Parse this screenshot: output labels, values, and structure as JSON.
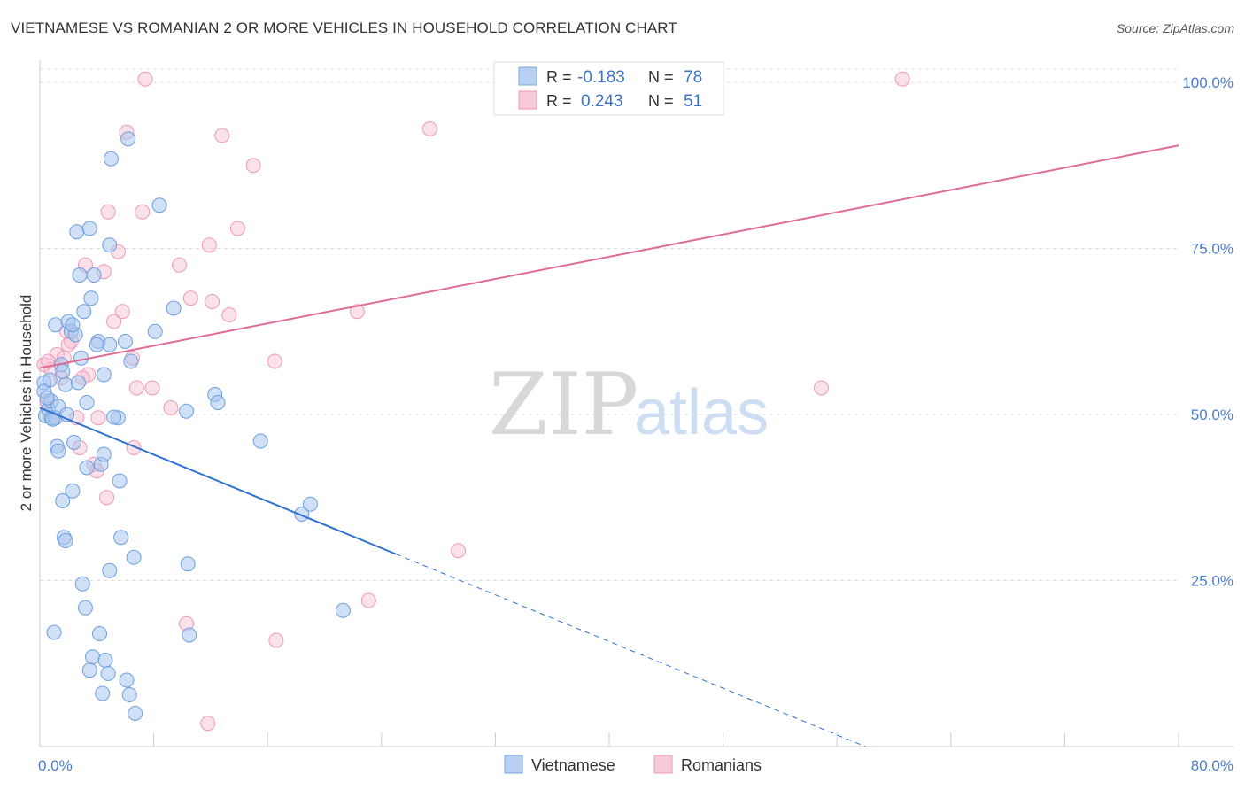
{
  "title": "VIETNAMESE VS ROMANIAN 2 OR MORE VEHICLES IN HOUSEHOLD CORRELATION CHART",
  "source": "Source: ZipAtlas.com",
  "watermark": {
    "zip": "ZIP",
    "atlas": "atlas"
  },
  "colors": {
    "blue_fill": "#a9c6ef",
    "blue_stroke": "#6f9fe0",
    "blue_line": "#2f72d0",
    "pink_fill": "#f6bfd0",
    "pink_stroke": "#ee9ab5",
    "pink_line": "#e06b96",
    "grid": "#dddddd",
    "axis_text": "#4a7cc9"
  },
  "legend": {
    "rows": [
      {
        "r_label": "R =",
        "r_value": "-0.183",
        "n_label": "N =",
        "n_value": "78",
        "series": "Vietnamese"
      },
      {
        "r_label": "R =",
        "r_value": "0.243",
        "n_label": "N =",
        "n_value": "51",
        "series": "Romanians"
      }
    ]
  },
  "bottom_legend": [
    "Vietnamese",
    "Romanians"
  ],
  "chart_data": {
    "type": "scatter",
    "title": "VIETNAMESE VS ROMANIAN 2 OR MORE VEHICLES IN HOUSEHOLD CORRELATION CHART",
    "xlabel": "",
    "ylabel": "2 or more Vehicles in Household",
    "xlim": [
      0,
      80
    ],
    "ylim": [
      0,
      102
    ],
    "x_tick_labels": [
      "0.0%",
      "80.0%"
    ],
    "y_ticks": [
      25,
      50,
      75,
      100
    ],
    "y_tick_labels": [
      "25.0%",
      "50.0%",
      "75.0%",
      "100.0%"
    ],
    "grid": true,
    "series": [
      {
        "name": "Vietnamese",
        "r": -0.183,
        "n": 78,
        "trend": {
          "x_start": 0,
          "y_start": 51.0,
          "x_solid_end": 25,
          "y_solid_end": 29.0,
          "x_dash_end": 58,
          "y_dash_end": 0
        },
        "points": [
          [
            0.3,
            54.8
          ],
          [
            0.3,
            53.5
          ],
          [
            0.4,
            49.8
          ],
          [
            0.6,
            50.8
          ],
          [
            0.7,
            55.2
          ],
          [
            0.8,
            52.0
          ],
          [
            0.8,
            49.5
          ],
          [
            1.0,
            17.2
          ],
          [
            1.1,
            63.5
          ],
          [
            1.1,
            49.5
          ],
          [
            1.2,
            45.2
          ],
          [
            1.3,
            44.5
          ],
          [
            1.3,
            51.2
          ],
          [
            1.5,
            57.5
          ],
          [
            1.6,
            37.0
          ],
          [
            1.7,
            31.5
          ],
          [
            1.8,
            31.0
          ],
          [
            1.8,
            54.5
          ],
          [
            2.0,
            64.0
          ],
          [
            2.2,
            62.5
          ],
          [
            2.3,
            38.5
          ],
          [
            2.4,
            45.8
          ],
          [
            2.5,
            62.0
          ],
          [
            2.6,
            77.5
          ],
          [
            2.7,
            54.8
          ],
          [
            2.8,
            71.0
          ],
          [
            2.9,
            58.5
          ],
          [
            3.0,
            24.5
          ],
          [
            3.1,
            65.5
          ],
          [
            3.2,
            20.9
          ],
          [
            3.3,
            51.8
          ],
          [
            3.3,
            42.0
          ],
          [
            3.5,
            11.5
          ],
          [
            3.5,
            78.0
          ],
          [
            3.6,
            67.5
          ],
          [
            3.7,
            13.5
          ],
          [
            3.8,
            71.0
          ],
          [
            4.1,
            61.0
          ],
          [
            4.2,
            17.0
          ],
          [
            4.3,
            42.5
          ],
          [
            4.4,
            8.0
          ],
          [
            4.5,
            56.0
          ],
          [
            4.5,
            44.0
          ],
          [
            4.6,
            13.0
          ],
          [
            4.8,
            11.0
          ],
          [
            4.9,
            60.5
          ],
          [
            4.9,
            75.5
          ],
          [
            4.9,
            26.5
          ],
          [
            5.0,
            88.5
          ],
          [
            5.5,
            49.5
          ],
          [
            5.6,
            40.0
          ],
          [
            5.7,
            31.5
          ],
          [
            6.0,
            61.0
          ],
          [
            6.1,
            10.0
          ],
          [
            6.2,
            91.5
          ],
          [
            6.3,
            7.8
          ],
          [
            6.4,
            58.0
          ],
          [
            6.6,
            28.5
          ],
          [
            6.7,
            5.0
          ],
          [
            8.1,
            62.5
          ],
          [
            8.4,
            81.5
          ],
          [
            9.4,
            66.0
          ],
          [
            10.3,
            50.5
          ],
          [
            10.4,
            27.5
          ],
          [
            10.5,
            16.8
          ],
          [
            12.3,
            53.0
          ],
          [
            12.5,
            51.8
          ],
          [
            15.5,
            46.0
          ],
          [
            18.4,
            35.0
          ],
          [
            19.0,
            36.5
          ],
          [
            21.3,
            20.5
          ],
          [
            0.5,
            52.5
          ],
          [
            1.9,
            50.0
          ],
          [
            2.3,
            63.5
          ],
          [
            4.0,
            60.5
          ],
          [
            5.2,
            49.6
          ],
          [
            1.6,
            56.5
          ],
          [
            0.9,
            49.3
          ]
        ]
      },
      {
        "name": "Romanians",
        "r": 0.243,
        "n": 51,
        "trend": {
          "x_start": 0,
          "y_start": 57.0,
          "x_end": 80,
          "y_end": 90.5
        },
        "points": [
          [
            0.3,
            57.5
          ],
          [
            0.5,
            52.0
          ],
          [
            0.8,
            56.8
          ],
          [
            1.2,
            59.0
          ],
          [
            1.5,
            55.5
          ],
          [
            1.7,
            58.5
          ],
          [
            1.9,
            62.5
          ],
          [
            2.2,
            61.0
          ],
          [
            2.6,
            49.5
          ],
          [
            2.8,
            45.0
          ],
          [
            3.2,
            72.5
          ],
          [
            3.4,
            56.0
          ],
          [
            3.8,
            42.5
          ],
          [
            4.0,
            41.5
          ],
          [
            4.1,
            49.5
          ],
          [
            4.5,
            71.5
          ],
          [
            4.7,
            37.5
          ],
          [
            4.8,
            80.5
          ],
          [
            5.2,
            64.0
          ],
          [
            5.5,
            74.5
          ],
          [
            5.8,
            65.5
          ],
          [
            6.1,
            92.5
          ],
          [
            6.5,
            58.5
          ],
          [
            6.6,
            45.0
          ],
          [
            6.8,
            54.0
          ],
          [
            7.2,
            80.5
          ],
          [
            7.4,
            100.5
          ],
          [
            7.9,
            54.0
          ],
          [
            9.2,
            51.0
          ],
          [
            9.8,
            72.5
          ],
          [
            10.3,
            18.5
          ],
          [
            10.6,
            67.5
          ],
          [
            11.8,
            3.5
          ],
          [
            11.9,
            75.5
          ],
          [
            12.1,
            67.0
          ],
          [
            12.8,
            92.0
          ],
          [
            13.3,
            65.0
          ],
          [
            13.9,
            78.0
          ],
          [
            15.0,
            87.5
          ],
          [
            16.5,
            58.0
          ],
          [
            16.6,
            16.0
          ],
          [
            22.3,
            65.5
          ],
          [
            23.1,
            22.0
          ],
          [
            27.4,
            93.0
          ],
          [
            29.4,
            29.5
          ],
          [
            32.4,
            100.5
          ],
          [
            54.9,
            54.0
          ],
          [
            60.6,
            100.5
          ],
          [
            0.6,
            58.0
          ],
          [
            2.0,
            60.5
          ],
          [
            3.0,
            55.5
          ]
        ]
      }
    ]
  }
}
